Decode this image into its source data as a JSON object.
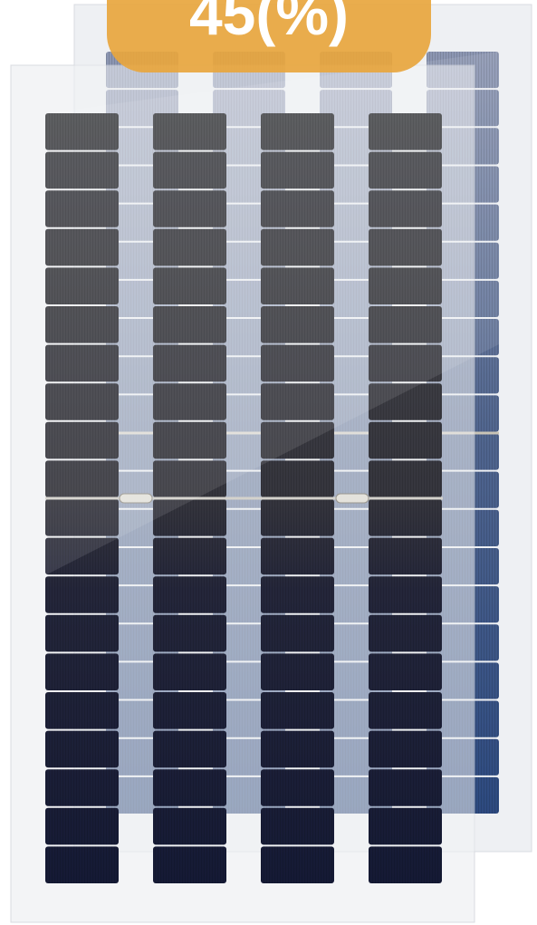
{
  "badge": {
    "label": "45(%)"
  }
}
